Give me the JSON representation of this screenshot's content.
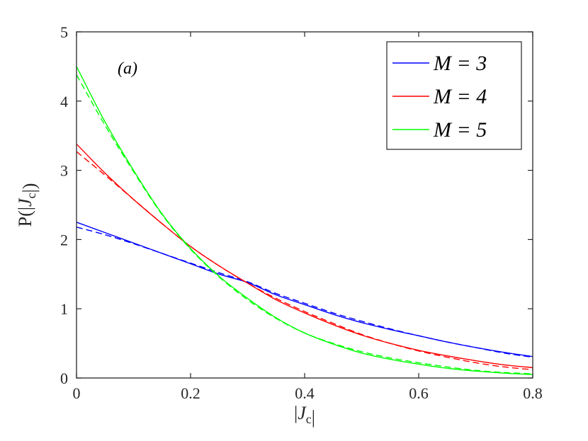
{
  "chart_data": {
    "type": "line",
    "panel_label": "(a)",
    "xlabel": "|J_c|",
    "ylabel": "P(|J_c|)",
    "xlim": [
      0,
      0.8
    ],
    "ylim": [
      0,
      5
    ],
    "xticks": [
      0,
      0.2,
      0.4,
      0.6,
      0.8
    ],
    "xtick_labels": [
      "0",
      "0.2",
      "0.4",
      "0.6",
      "0.8"
    ],
    "yticks": [
      0,
      1,
      2,
      3,
      4,
      5
    ],
    "ytick_labels": [
      "0",
      "1",
      "2",
      "3",
      "4",
      "5"
    ],
    "grid": false,
    "legend_position": "top-right",
    "x": [
      0,
      0.05,
      0.1,
      0.15,
      0.2,
      0.25,
      0.3,
      0.35,
      0.4,
      0.45,
      0.5,
      0.55,
      0.6,
      0.65,
      0.7,
      0.75,
      0.8
    ],
    "series": [
      {
        "name": "M = 3",
        "color": "#0000ff",
        "style": "solid",
        "values": [
          2.25,
          2.1,
          1.95,
          1.8,
          1.65,
          1.5,
          1.38,
          1.2,
          1.06,
          0.92,
          0.8,
          0.7,
          0.61,
          0.52,
          0.44,
          0.37,
          0.31
        ]
      },
      {
        "name": "M = 3 (dashed)",
        "color": "#0000ff",
        "style": "dashed",
        "values": [
          2.18,
          2.07,
          1.94,
          1.8,
          1.66,
          1.52,
          1.39,
          1.22,
          1.08,
          0.94,
          0.82,
          0.71,
          0.61,
          0.52,
          0.44,
          0.36,
          0.3
        ]
      },
      {
        "name": "M = 4",
        "color": "#ff0000",
        "style": "solid",
        "values": [
          3.38,
          2.96,
          2.58,
          2.23,
          1.9,
          1.62,
          1.37,
          1.13,
          0.94,
          0.77,
          0.62,
          0.5,
          0.4,
          0.32,
          0.25,
          0.19,
          0.15
        ]
      },
      {
        "name": "M = 4 (dashed)",
        "color": "#ff0000",
        "style": "dashed",
        "values": [
          3.27,
          2.93,
          2.58,
          2.23,
          1.9,
          1.62,
          1.37,
          1.15,
          0.96,
          0.79,
          0.63,
          0.5,
          0.39,
          0.3,
          0.22,
          0.16,
          0.12
        ]
      },
      {
        "name": "M = 5",
        "color": "#00ff00",
        "style": "solid",
        "values": [
          4.5,
          3.7,
          3.0,
          2.37,
          1.87,
          1.47,
          1.15,
          0.87,
          0.65,
          0.49,
          0.36,
          0.27,
          0.2,
          0.14,
          0.1,
          0.07,
          0.05
        ]
      },
      {
        "name": "M = 5 (dashed)",
        "color": "#00ff00",
        "style": "dashed",
        "values": [
          4.38,
          3.65,
          2.98,
          2.36,
          1.86,
          1.46,
          1.13,
          0.86,
          0.65,
          0.5,
          0.38,
          0.29,
          0.22,
          0.16,
          0.11,
          0.08,
          0.06
        ]
      }
    ],
    "legend": [
      {
        "label": "M = 3",
        "color": "#0000ff"
      },
      {
        "label": "M = 4",
        "color": "#ff0000"
      },
      {
        "label": "M = 5",
        "color": "#00ff00"
      }
    ]
  }
}
